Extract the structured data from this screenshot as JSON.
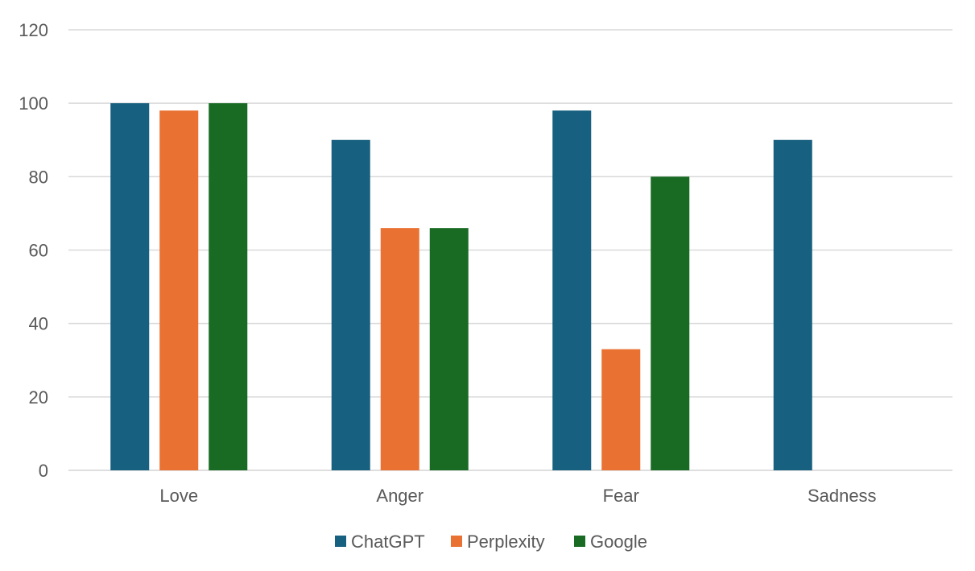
{
  "chart_data": {
    "type": "bar",
    "categories": [
      "Love",
      "Anger",
      "Fear",
      "Sadness"
    ],
    "series": [
      {
        "name": "ChatGPT",
        "color": "#17607F",
        "values": [
          100,
          90,
          98,
          90
        ]
      },
      {
        "name": "Perplexity",
        "color": "#E97132",
        "values": [
          98,
          66,
          33,
          0
        ]
      },
      {
        "name": "Google",
        "color": "#196B24",
        "values": [
          100,
          66,
          80,
          0
        ]
      }
    ],
    "ylim": [
      0,
      120
    ],
    "yticks": [
      0,
      20,
      40,
      60,
      80,
      100,
      120
    ],
    "grid": true,
    "legend_position": "bottom",
    "title": "",
    "xlabel": "",
    "ylabel": ""
  }
}
